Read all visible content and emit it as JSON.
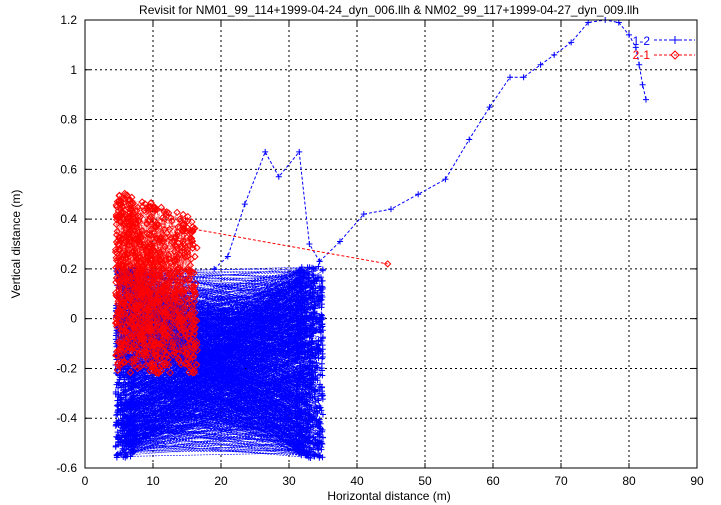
{
  "chart_data": {
    "type": "scatter",
    "title": "Revisit for NM01_99_114+1999-04-24_dyn_006.llh & NM02_99_117+1999-04-27_dyn_009.llh",
    "xlabel": "Horizontal distance (m)",
    "ylabel": "Vertical distance (m)",
    "xlim": [
      0,
      90
    ],
    "ylim": [
      -0.6,
      1.2
    ],
    "x_ticks": [
      0,
      10,
      20,
      30,
      40,
      50,
      60,
      70,
      80,
      90
    ],
    "y_ticks": [
      -0.6,
      -0.4,
      -0.2,
      0,
      0.2,
      0.4,
      0.6,
      0.8,
      1.0,
      1.2
    ],
    "x_tick_labels": [
      "0",
      "10",
      "20",
      "30",
      "40",
      "50",
      "60",
      "70",
      "80",
      "90"
    ],
    "y_tick_labels": [
      "-0.6",
      "-0.4",
      "-0.2",
      "0",
      "0.2",
      "0.4",
      "0.6",
      "0.8",
      "1",
      "1.2"
    ],
    "grid": true,
    "legend_position": "top-right",
    "series": [
      {
        "name": "1-2",
        "color": "#0000ff",
        "marker": "plus",
        "line": "dashed",
        "trail": [
          [
            34.5,
            0.23
          ],
          [
            37.5,
            0.31
          ],
          [
            41.0,
            0.42
          ],
          [
            45.0,
            0.44
          ],
          [
            49.0,
            0.5
          ],
          [
            53.0,
            0.56
          ],
          [
            56.5,
            0.72
          ],
          [
            59.5,
            0.85
          ],
          [
            62.5,
            0.97
          ],
          [
            64.5,
            0.97
          ],
          [
            67.0,
            1.02
          ],
          [
            69.0,
            1.06
          ],
          [
            71.5,
            1.11
          ],
          [
            74.0,
            1.19
          ],
          [
            76.5,
            1.2
          ],
          [
            78.5,
            1.19
          ],
          [
            80.0,
            1.14
          ],
          [
            81.0,
            1.09
          ],
          [
            81.5,
            1.02
          ],
          [
            82.0,
            0.94
          ],
          [
            82.5,
            0.88
          ]
        ],
        "spikes": [
          [
            19.0,
            0.2
          ],
          [
            21.0,
            0.25
          ],
          [
            23.5,
            0.46
          ],
          [
            26.5,
            0.67
          ],
          [
            28.5,
            0.57
          ],
          [
            31.5,
            0.67
          ],
          [
            33.0,
            0.3
          ],
          [
            34.5,
            0.23
          ]
        ],
        "cloud": {
          "x_range": [
            4.5,
            35.0
          ],
          "y_range": [
            -0.59,
            0.23
          ],
          "approx_point_count": 1200
        }
      },
      {
        "name": "2-1",
        "color": "#ff0000",
        "marker": "diamond",
        "line": "dashed",
        "outlier_segment": [
          [
            16.0,
            0.36
          ],
          [
            44.5,
            0.22
          ]
        ],
        "cloud": {
          "x_range": [
            4.5,
            16.5
          ],
          "y_range": [
            -0.22,
            0.52
          ],
          "approx_point_count": 700
        }
      }
    ]
  }
}
